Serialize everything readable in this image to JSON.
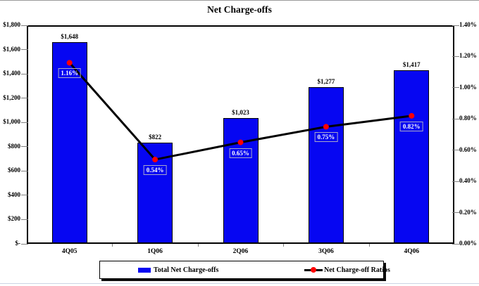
{
  "chart_data": {
    "type": "bar",
    "subtype": "combo-bar-line",
    "title": "Net Charge-offs",
    "categories": [
      "4Q05",
      "1Q06",
      "2Q06",
      "3Q06",
      "4Q06"
    ],
    "series": [
      {
        "name": "Total Net Charge-offs",
        "type": "bar",
        "axis": "left",
        "values": [
          1648,
          822,
          1023,
          1277,
          1417
        ],
        "labels": [
          "$1,648",
          "$822",
          "$1,023",
          "$1,277",
          "$1,417"
        ],
        "color": "#0606f2"
      },
      {
        "name": "Net Charge-off Ratios",
        "type": "line",
        "axis": "right",
        "values": [
          1.16,
          0.54,
          0.65,
          0.75,
          0.82
        ],
        "labels": [
          "1.16%",
          "0.54%",
          "0.65%",
          "0.75%",
          "0.82%"
        ],
        "line_color": "#000000",
        "marker_color": "#ff0000"
      }
    ],
    "left_axis": {
      "min": 0,
      "max": 1800,
      "ticks": [
        "$-",
        "$200",
        "$400",
        "$600",
        "$800",
        "$1,000",
        "$1,200",
        "$1,400",
        "$1,600",
        "$1,800"
      ]
    },
    "right_axis": {
      "min": 0,
      "max": 1.4,
      "ticks": [
        "0.00%",
        "0.20%",
        "0.40%",
        "0.60%",
        "0.80%",
        "1.00%",
        "1.20%",
        "1.40%"
      ]
    },
    "grid": false,
    "legend_position": "bottom"
  }
}
